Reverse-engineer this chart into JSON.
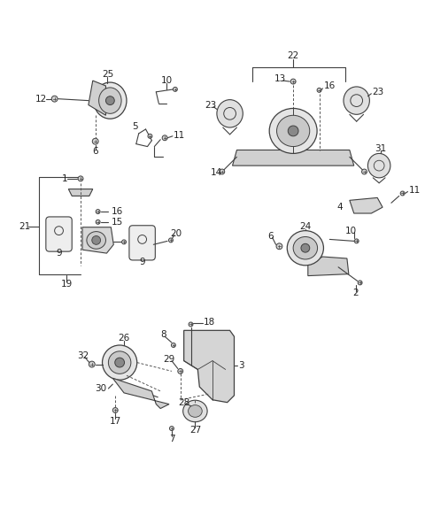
{
  "bg_color": "#ffffff",
  "line_color": "#404040",
  "fig_width": 4.8,
  "fig_height": 5.83,
  "dpi": 100
}
